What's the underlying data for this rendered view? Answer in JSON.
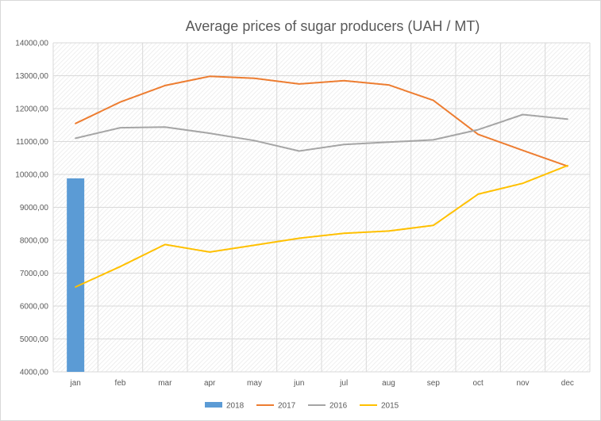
{
  "chart_data": {
    "type": "line",
    "title": "Average prices of sugar producers (UAH / MT)",
    "categories": [
      "jan",
      "feb",
      "mar",
      "apr",
      "may",
      "jun",
      "jul",
      "aug",
      "sep",
      "oct",
      "nov",
      "dec"
    ],
    "ylim": [
      4000,
      14000
    ],
    "yticks": [
      "4000,00",
      "5000,00",
      "6000,00",
      "7000,00",
      "8000,00",
      "9000,00",
      "10000,00",
      "11000,00",
      "12000,00",
      "13000,00",
      "14000,00"
    ],
    "grid": true,
    "legend_position": "bottom",
    "series": [
      {
        "name": "2018",
        "kind": "bar",
        "color": "#5b9bd5",
        "values": [
          9880,
          null,
          null,
          null,
          null,
          null,
          null,
          null,
          null,
          null,
          null,
          null
        ]
      },
      {
        "name": "2017",
        "kind": "line",
        "color": "#ed7d31",
        "values": [
          11550,
          12200,
          12700,
          12980,
          12920,
          12750,
          12850,
          12720,
          12250,
          11220,
          10730,
          10250
        ]
      },
      {
        "name": "2016",
        "kind": "line",
        "color": "#a5a5a5",
        "values": [
          11100,
          11420,
          11440,
          11250,
          11030,
          10710,
          10910,
          10980,
          11050,
          11360,
          11820,
          11680
        ]
      },
      {
        "name": "2015",
        "kind": "line",
        "color": "#ffc000",
        "values": [
          6580,
          7200,
          7870,
          7640,
          7850,
          8060,
          8210,
          8280,
          8450,
          9400,
          9730,
          10270
        ]
      }
    ]
  }
}
